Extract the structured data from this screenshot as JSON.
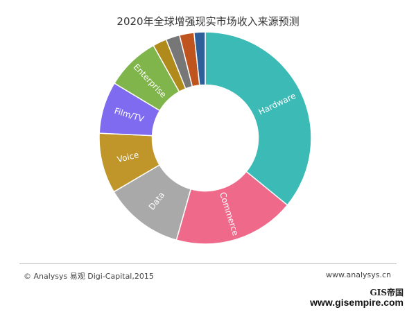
{
  "chart_data": {
    "type": "pie",
    "title": "2020年全球增强现实市场收入来源预测",
    "categories": [
      "Hardware",
      "Commerce",
      "Data",
      "Voice",
      "Film/TV",
      "Enterprise",
      "",
      "",
      "",
      ""
    ],
    "values": [
      34.0,
      17.5,
      11.5,
      8.7,
      7.5,
      7.8,
      2.0,
      2.0,
      2.1,
      1.6
    ],
    "colors": [
      "#3bbab6",
      "#ef6a8a",
      "#a9a9a9",
      "#c0962a",
      "#7f6bef",
      "#7fb54a",
      "#b08a1a",
      "#777777",
      "#c0541e",
      "#2f5f99"
    ],
    "hole": 0.5
  },
  "footer": {
    "source_left": "© Analysys 易观 Digi-Capital,2015",
    "source_right": "www.analysys.cn"
  },
  "badge": {
    "top": "GIS帝国",
    "bottom": "www.gisempire.com"
  }
}
